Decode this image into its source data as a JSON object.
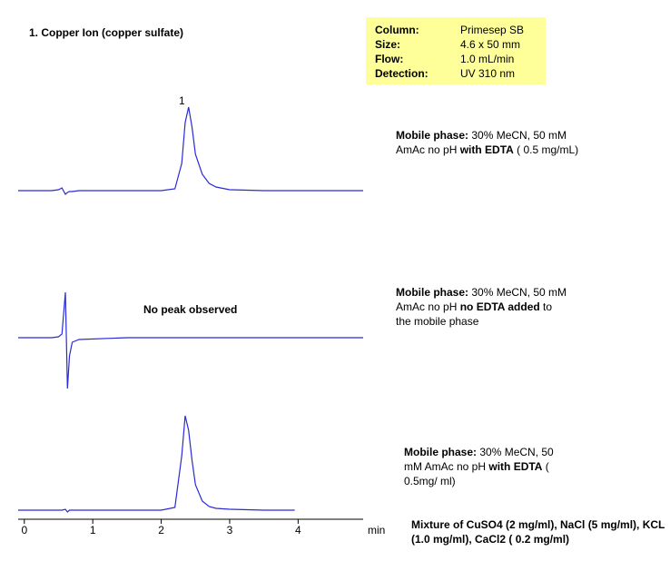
{
  "title": "1. Copper Ion (copper sulfate)",
  "conditions": [
    {
      "label": "Column:",
      "value": "Primesep SB"
    },
    {
      "label": "Size:",
      "value": "4.6 x 50 mm"
    },
    {
      "label": "Flow:",
      "value": "1.0 mL/min"
    },
    {
      "label": "Detection:",
      "value": "UV 310 nm"
    }
  ],
  "peak_label": "1",
  "no_peak_note": "No peak observed",
  "mobile_phases": [
    [
      {
        "text": "Mobile phase:",
        "bold": true
      },
      {
        "text": " 30% MeCN, 50 mM AmAc no pH ",
        "bold": false
      },
      {
        "text": "with EDTA",
        "bold": true
      },
      {
        "text": " ( 0.5 mg/mL)",
        "bold": false
      }
    ],
    [
      {
        "text": "Mobile phase:",
        "bold": true
      },
      {
        "text": " 30% MeCN, 50 mM AmAc no pH ",
        "bold": false
      },
      {
        "text": "no EDTA added",
        "bold": true
      },
      {
        "text": " to the mobile phase",
        "bold": false
      }
    ],
    [
      {
        "text": "Mobile phase:",
        "bold": true
      },
      {
        "text": " 30% MeCN, 50 mM AmAc no pH ",
        "bold": false
      },
      {
        "text": "with EDTA",
        "bold": true
      },
      {
        "text": " ( 0.5mg/ ml)",
        "bold": false
      }
    ]
  ],
  "sample": "Mixture of CuSO4 (2 mg/ml), NaCl (5 mg/ml), KCL (1.0 mg/ml), CaCl2 ( 0.2 mg/ml)",
  "chart_data": {
    "type": "line",
    "x": [
      -0.09,
      0.4,
      0.5,
      0.55,
      0.6,
      0.63,
      0.66,
      0.7,
      0.8,
      1.5,
      2.0,
      2.2,
      2.3,
      2.35,
      2.4,
      2.45,
      2.5,
      2.6,
      2.7,
      2.8,
      3.0,
      3.5,
      3.95,
      4.95
    ],
    "xlim": [
      -0.09,
      4.95
    ],
    "xticks": [
      0,
      1,
      2,
      3,
      4
    ],
    "xlabel": "min",
    "series": [
      {
        "color": "#2a2ad8",
        "values": [
          0,
          0,
          1,
          3,
          -4,
          -2,
          -1,
          -1,
          0,
          0,
          0,
          2,
          30,
          75,
          92,
          70,
          40,
          18,
          8,
          4,
          1,
          0,
          0,
          0
        ]
      },
      {
        "color": "#2a2ad8",
        "values": [
          0,
          0,
          1,
          4,
          50,
          -56,
          -20,
          -5,
          -2,
          0,
          0,
          0,
          0,
          0,
          0,
          0,
          0,
          0,
          0,
          0,
          0,
          0,
          0,
          0
        ]
      },
      {
        "color": "#2a2ad8",
        "values": [
          0,
          0,
          0,
          0,
          1,
          -2,
          0,
          0,
          0,
          0,
          0,
          3,
          60,
          104,
          88,
          55,
          28,
          10,
          4,
          2,
          1,
          0,
          0,
          null
        ]
      }
    ]
  }
}
